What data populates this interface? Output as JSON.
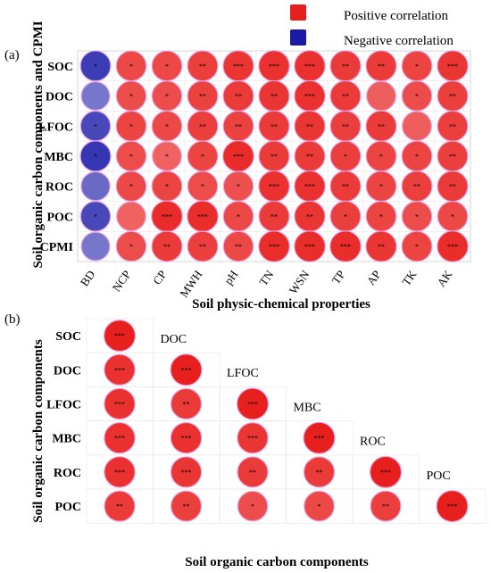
{
  "legend": {
    "positive": {
      "label": "Positive correlation",
      "color": "#e8201d"
    },
    "negative": {
      "label": "Negative correlation",
      "color": "#1a1aa8"
    }
  },
  "chart_data": [
    {
      "type": "heatmap",
      "panel": "(a)",
      "xlabel": "Soil physic-chemical properties",
      "ylabel": "Soil organic carbon components and CPMI",
      "rows": [
        "SOC",
        "DOC",
        "LFOC",
        "MBC",
        "ROC",
        "POC",
        "CPMI"
      ],
      "cols": [
        "BD",
        "NCP",
        "CP",
        "MWH",
        "pH",
        "TN",
        "WSN",
        "TP",
        "AP",
        "TK",
        "AK"
      ],
      "values": [
        [
          -0.85,
          0.82,
          0.82,
          0.86,
          0.9,
          0.92,
          0.92,
          0.88,
          0.88,
          0.84,
          0.9
        ],
        [
          -0.6,
          0.8,
          0.8,
          0.85,
          0.88,
          0.9,
          0.92,
          0.88,
          0.72,
          0.8,
          0.86
        ],
        [
          -0.8,
          0.84,
          0.82,
          0.86,
          0.85,
          0.88,
          0.9,
          0.86,
          0.88,
          0.72,
          0.86
        ],
        [
          -0.88,
          0.8,
          0.7,
          0.84,
          0.95,
          0.88,
          0.88,
          0.86,
          0.84,
          0.84,
          0.86
        ],
        [
          -0.65,
          0.82,
          0.84,
          0.8,
          0.78,
          0.92,
          0.92,
          0.88,
          0.84,
          0.86,
          0.88
        ],
        [
          -0.8,
          0.7,
          0.95,
          0.94,
          0.82,
          0.88,
          0.9,
          0.86,
          0.84,
          0.8,
          0.82
        ],
        [
          -0.6,
          0.8,
          0.88,
          0.86,
          0.82,
          0.94,
          0.94,
          0.94,
          0.9,
          0.84,
          0.94
        ]
      ],
      "significance": [
        [
          "*",
          "*",
          "*",
          "**",
          "***",
          "***",
          "***",
          "**",
          "**",
          "*",
          "***"
        ],
        [
          "",
          "*",
          "*",
          "**",
          "**",
          "**",
          "***",
          "**",
          "",
          "*",
          "**"
        ],
        [
          "*",
          "*",
          "*",
          "**",
          "**",
          "**",
          "**",
          "**",
          "**",
          "",
          "**"
        ],
        [
          "*",
          "*",
          "*",
          "*",
          "***",
          "**",
          "**",
          "*",
          "*",
          "*",
          "**"
        ],
        [
          "",
          "*",
          "*",
          "*",
          "*",
          "***",
          "***",
          "**",
          "*",
          "**",
          "**"
        ],
        [
          "*",
          "",
          "***",
          "***",
          "*",
          "**",
          "**",
          "*",
          "*",
          "*",
          "*"
        ],
        [
          "",
          "*",
          "**",
          "**",
          "**",
          "***",
          "***",
          "***",
          "**",
          "*",
          "***"
        ]
      ]
    },
    {
      "type": "heatmap",
      "panel": "(b)",
      "xlabel": "Soil organic carbon components",
      "ylabel": "Soil organic carbon components",
      "rows": [
        "SOC",
        "DOC",
        "LFOC",
        "MBC",
        "ROC",
        "POC"
      ],
      "cols": [
        "SOC",
        "DOC",
        "LFOC",
        "MBC",
        "ROC",
        "POC"
      ],
      "values": [
        [
          1.0,
          null,
          null,
          null,
          null,
          null
        ],
        [
          0.92,
          1.0,
          null,
          null,
          null,
          null
        ],
        [
          0.92,
          0.88,
          1.0,
          null,
          null,
          null
        ],
        [
          0.92,
          0.92,
          0.9,
          1.0,
          null,
          null
        ],
        [
          0.92,
          0.9,
          0.88,
          0.88,
          1.0,
          null
        ],
        [
          0.88,
          0.86,
          0.8,
          0.82,
          0.86,
          1.0
        ]
      ],
      "significance": [
        [
          "***",
          "",
          "",
          "",
          "",
          ""
        ],
        [
          "***",
          "***",
          "",
          "",
          "",
          ""
        ],
        [
          "***",
          "**",
          "***",
          "",
          "",
          ""
        ],
        [
          "***",
          "***",
          "***",
          "***",
          "",
          ""
        ],
        [
          "***",
          "***",
          "**",
          "**",
          "***",
          ""
        ],
        [
          "**",
          "**",
          "*",
          "*",
          "**",
          "***"
        ]
      ]
    }
  ]
}
